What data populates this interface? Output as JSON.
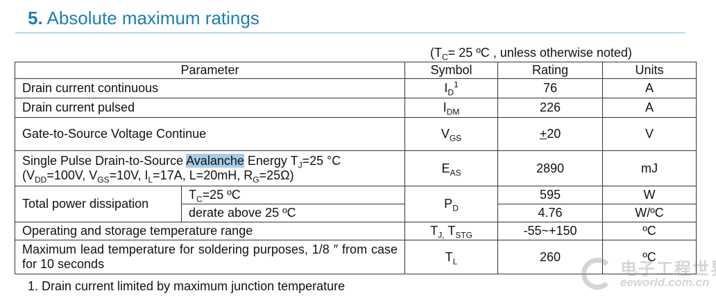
{
  "section": {
    "number": "5.",
    "title": "Absolute maximum ratings"
  },
  "conditions": {
    "open": "(T",
    "sub": "C",
    "rest": "= 25 ºC , unless otherwise noted)"
  },
  "headers": {
    "parameter": "Parameter",
    "symbol": "Symbol",
    "rating": "Rating",
    "units": "Units"
  },
  "rows": {
    "id": {
      "param": "Drain current continuous",
      "sym_main": "I",
      "sym_sub": "D",
      "sym_sup": "1",
      "rating": "76",
      "unit": "A"
    },
    "idm": {
      "param": "Drain current pulsed",
      "sym_main": "I",
      "sym_sub": "DM",
      "rating": "226",
      "unit": "A"
    },
    "vgs": {
      "param": "Gate-to-Source Voltage Continue",
      "sym_main": "V",
      "sym_sub": "GS",
      "rating_pm": "+",
      "rating": "20",
      "unit": "V"
    },
    "eas": {
      "p1": "Single Pulse Drain-to-Source ",
      "highlight": "Avalanche",
      "p2": " Energy T",
      "p2_sub": "J",
      "p3": "=25 °C",
      "c1": "(V",
      "c1_sub": "DD",
      "c2": "=100V, V",
      "c2_sub": "GS",
      "c3": "=10V, I",
      "c3_sub": "L",
      "c4": "=17A, L=20mH, R",
      "c4_sub": "G",
      "c5": "=25Ω)",
      "sym_main": "E",
      "sym_sub": "AS",
      "rating": "2890",
      "unit": "mJ"
    },
    "pd": {
      "param": "Total power dissipation",
      "cond1_main": "T",
      "cond1_sub": "C",
      "cond1_rest": "=25 ºC",
      "cond2": "derate above 25 ºC",
      "sym_main": "P",
      "sym_sub": "D",
      "rating1": "595",
      "unit1": "W",
      "rating2": "4.76",
      "unit2": "W/ºC"
    },
    "tj": {
      "param": "Operating and storage temperature range",
      "sym_a": "T",
      "sym_a_sub": "J,",
      "sym_b": " T",
      "sym_b_sub": "STG",
      "rating": "-55~+150",
      "unit": "ºC"
    },
    "tl": {
      "param": "Maximum lead temperature for soldering purposes, 1/8 ″ from case for 10 seconds",
      "sym_main": "T",
      "sym_sub": "L",
      "rating": "260",
      "unit": "ºC"
    }
  },
  "footnote": "1. Drain current limited by maximum junction temperature",
  "watermark": {
    "cn": "电子工程世界",
    "url": "eeworld.com.cn",
    "icon": "eeworld-logo-icon"
  }
}
